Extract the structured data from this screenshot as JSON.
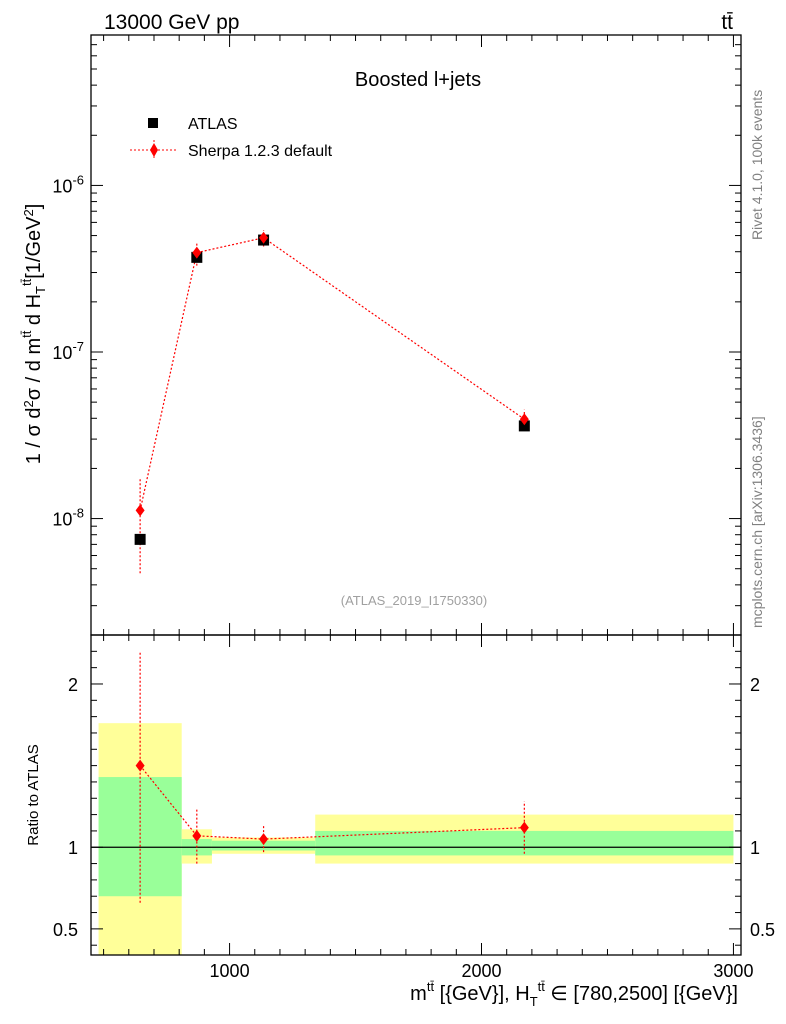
{
  "header": {
    "energy_label": "13000 GeV pp",
    "process_label": "tt̄"
  },
  "side_labels": {
    "rivet": "Rivet 4.1.0,  100k events",
    "mcplots": "mcplots.cern.ch [arXiv:1306.3436]"
  },
  "chart_data": [
    {
      "type": "scatter",
      "title": "Boosted l+jets",
      "analysis_label": "(ATLAS_2019_I1750330)",
      "ylabel": "1 / σ d²σ / d m^{tt̄} d H_T^{tt̄} [1/GeV²]",
      "yscale": "log",
      "ylim": [
        2e-09,
        8e-06
      ],
      "xlim": [
        450,
        3030
      ],
      "y_tick_labels": [
        "10^{-8}",
        "10^{-7}",
        "10^{-6}"
      ],
      "x_tick_labels": [
        "1000",
        "2000",
        "3000"
      ],
      "legend": [
        "ATLAS",
        "Sherpa 1.2.3 default"
      ],
      "legend_position": "top-left",
      "series": [
        {
          "name": "ATLAS",
          "color": "#000000",
          "marker": "square",
          "x": [
            645,
            870,
            1135,
            2170
          ],
          "y": [
            7.5e-09,
            3.7e-07,
            4.7e-07,
            3.6e-08
          ]
        },
        {
          "name": "Sherpa 1.2.3 default",
          "color": "#ff0000",
          "marker": "diamond",
          "line": "dotted",
          "x": [
            645,
            870,
            1135,
            2170
          ],
          "y": [
            1.12e-08,
            3.95e-07,
            4.85e-07,
            3.95e-08
          ],
          "y_err_low": [
            4.7e-09,
            3.3e-07,
            4.3e-07,
            3.4e-08
          ],
          "y_err_high": [
            1.75e-08,
            4.6e-07,
            5.4e-07,
            4.5e-08
          ]
        }
      ]
    },
    {
      "type": "scatter",
      "ylabel": "Ratio to ATLAS",
      "xlabel": "m^{tt̄} [{GeV}], H_T^{tt̄} ∈ [780,2500] [{GeV}]",
      "xlim": [
        450,
        3030
      ],
      "ylim": [
        0.34,
        2.3
      ],
      "y_tick_labels": [
        "0.5",
        "1",
        "2"
      ],
      "x_tick_labels": [
        "1000",
        "2000",
        "3000"
      ],
      "reference_line": 1,
      "uncertainty_bands": [
        {
          "x_range": [
            480,
            810
          ],
          "green": [
            0.7,
            1.43
          ],
          "yellow": [
            0.34,
            1.76
          ]
        },
        {
          "x_range": [
            810,
            930
          ],
          "green": [
            0.95,
            1.05
          ],
          "yellow": [
            0.9,
            1.11
          ]
        },
        {
          "x_range": [
            930,
            1340
          ],
          "green": [
            0.98,
            1.04
          ],
          "yellow": [
            0.96,
            1.06
          ]
        },
        {
          "x_range": [
            1340,
            3000
          ],
          "green": [
            0.95,
            1.1
          ],
          "yellow": [
            0.9,
            1.2
          ]
        }
      ],
      "series": [
        {
          "name": "Sherpa 1.2.3 default",
          "color": "#ff0000",
          "x": [
            645,
            870,
            1135,
            2170
          ],
          "y": [
            1.5,
            1.07,
            1.05,
            1.12
          ],
          "y_err_low": [
            0.66,
            0.9,
            0.97,
            0.96
          ],
          "y_err_high": [
            2.2,
            1.24,
            1.13,
            1.28
          ]
        }
      ]
    }
  ]
}
